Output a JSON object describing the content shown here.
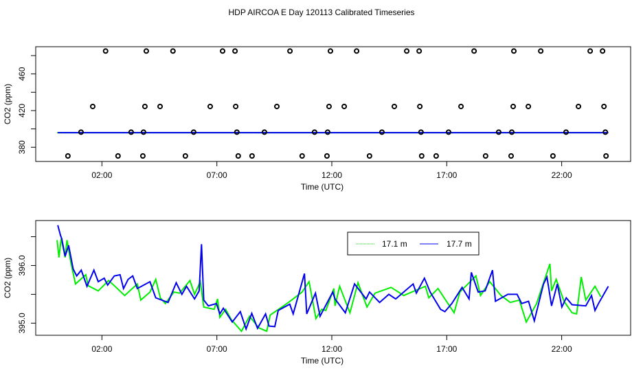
{
  "chart_data": [
    {
      "type": "scatter",
      "title": "HDP AIRCOA E  Day 120113  Calibrated Timeseries",
      "xlabel": "Time (UTC)",
      "ylabel": "CO2 (ppm)",
      "xlim": [
        -0.88,
        25.0
      ],
      "ylim": [
        364.5,
        489.7
      ],
      "xticks": [
        {
          "v": 2,
          "label": "02:00"
        },
        {
          "v": 7,
          "label": "07:00"
        },
        {
          "v": 12,
          "label": "12:00"
        },
        {
          "v": 17,
          "label": "17:00"
        },
        {
          "v": 22,
          "label": "22:00"
        }
      ],
      "yticks": [
        {
          "v": 380,
          "label": "380"
        },
        {
          "v": 400,
          "label": ""
        },
        {
          "v": 420,
          "label": "420"
        },
        {
          "v": 440,
          "label": ""
        },
        {
          "v": 460,
          "label": "460"
        },
        {
          "v": 480,
          "label": ""
        }
      ],
      "points": [
        {
          "level": 485,
          "x": [
            2.16,
            3.93,
            5.09,
            7.25,
            7.79,
            10.18,
            11.94,
            13.08,
            15.26,
            15.8,
            18.19,
            19.92,
            21.09,
            23.24,
            23.78
          ]
        },
        {
          "level": 424.5,
          "x": [
            1.6,
            3.87,
            4.53,
            6.71,
            7.82,
            9.61,
            11.88,
            12.54,
            14.72,
            15.83,
            17.62,
            19.89,
            20.55,
            22.73,
            23.84
          ]
        },
        {
          "level": 396.5,
          "x": [
            1.09,
            3.27,
            3.81,
            5.99,
            7.87,
            9.07,
            11.25,
            11.82,
            14.18,
            15.88,
            17.08,
            19.26,
            19.83,
            22.19,
            23.9
          ]
        },
        {
          "level": 370.5,
          "x": [
            0.52,
            2.7,
            3.78,
            5.63,
            7.93,
            8.53,
            10.71,
            11.79,
            13.64,
            15.91,
            16.54,
            18.69,
            19.8,
            21.62,
            23.93
          ]
        }
      ],
      "line_level": 395.9
    },
    {
      "type": "line",
      "xlabel": "Time (UTC)",
      "ylabel": "CO2 (ppm)",
      "xlim": [
        -0.88,
        25.0
      ],
      "ylim": [
        394.79,
        396.78
      ],
      "xticks": [
        {
          "v": 2,
          "label": "02:00"
        },
        {
          "v": 7,
          "label": "07:00"
        },
        {
          "v": 12,
          "label": "12:00"
        },
        {
          "v": 17,
          "label": "17:00"
        },
        {
          "v": 22,
          "label": "22:00"
        }
      ],
      "yticks": [
        {
          "v": 395.0,
          "label": "395.0"
        },
        {
          "v": 395.5,
          "label": ""
        },
        {
          "v": 396.0,
          "label": "396.0"
        },
        {
          "v": 396.5,
          "label": ""
        }
      ],
      "legend": {
        "position": "top-center"
      },
      "series": [
        {
          "name": "17.1 m",
          "color": "#00ee00",
          "x": [
            0.05,
            0.13,
            0.23,
            0.4,
            0.48,
            0.65,
            0.85,
            1.3,
            1.4,
            1.84,
            2.29,
            2.54,
            2.99,
            3.54,
            3.69,
            4.09,
            4.34,
            4.54,
            4.76,
            5.13,
            5.38,
            5.83,
            6.03,
            6.28,
            6.43,
            6.88,
            7.03,
            7.13,
            7.38,
            7.63,
            8.07,
            8.42,
            8.82,
            9.17,
            9.32,
            9.87,
            10.22,
            10.71,
            11.01,
            11.31,
            11.56,
            11.74,
            12.09,
            12.14,
            12.34,
            12.79,
            13.14,
            13.53,
            13.88,
            14.58,
            15.13,
            16.07,
            16.22,
            16.62,
            17.32,
            17.57,
            18.27,
            18.47,
            18.87,
            19.36,
            19.76,
            20.16,
            20.46,
            20.91,
            21.49,
            21.56,
            21.76,
            22.1,
            22.45,
            22.65,
            22.85,
            23.05,
            23.45,
            23.7
          ],
          "y": [
            396.44,
            396.14,
            396.47,
            396.14,
            396.44,
            396.05,
            395.68,
            395.84,
            395.65,
            395.56,
            395.74,
            395.65,
            395.48,
            395.68,
            395.4,
            395.54,
            395.76,
            395.44,
            395.34,
            395.54,
            395.52,
            395.74,
            395.5,
            395.72,
            395.28,
            395.24,
            395.42,
            395.1,
            395.24,
            395.06,
            394.86,
            395.12,
            394.92,
            394.86,
            395.14,
            395.29,
            395.39,
            395.54,
            395.72,
            395.08,
            395.24,
            395.22,
            395.6,
            395.3,
            395.64,
            395.18,
            395.7,
            395.28,
            395.52,
            395.62,
            395.48,
            395.64,
            395.44,
            395.6,
            395.18,
            395.54,
            395.82,
            395.48,
            395.72,
            395.48,
            395.36,
            395.4,
            395.02,
            395.34,
            396.03,
            395.56,
            395.76,
            395.38,
            395.18,
            395.16,
            395.8,
            395.4,
            395.64,
            395.46
          ]
        },
        {
          "name": "17.7 m",
          "color": "#0000ee",
          "x": [
            0.08,
            0.2,
            0.25,
            0.4,
            0.55,
            0.75,
            0.9,
            1.1,
            1.35,
            1.65,
            1.84,
            2.1,
            2.25,
            2.54,
            2.79,
            2.94,
            3.14,
            3.34,
            3.54,
            4.09,
            4.34,
            4.88,
            5.23,
            5.48,
            5.68,
            6.03,
            6.23,
            6.33,
            6.43,
            6.63,
            6.98,
            7.13,
            7.28,
            7.67,
            8.02,
            8.27,
            8.52,
            8.77,
            9.12,
            9.27,
            9.52,
            9.67,
            10.17,
            10.32,
            10.81,
            10.91,
            11.29,
            11.49,
            12.04,
            12.14,
            12.59,
            12.99,
            13.49,
            13.64,
            14.08,
            14.48,
            14.78,
            15.54,
            15.68,
            16.03,
            16.28,
            16.73,
            16.92,
            17.22,
            17.67,
            17.97,
            18.07,
            18.37,
            18.67,
            18.99,
            19.12,
            19.66,
            20.06,
            20.26,
            20.56,
            20.81,
            21.21,
            21.36,
            21.56,
            21.81,
            22.01,
            22.2,
            22.45,
            23.05,
            23.3,
            23.45,
            23.6,
            24.03
          ],
          "y": [
            396.7,
            396.52,
            396.47,
            396.16,
            396.35,
            395.94,
            395.82,
            395.92,
            395.64,
            395.92,
            395.72,
            395.78,
            395.66,
            395.82,
            395.84,
            395.6,
            395.76,
            395.82,
            395.6,
            395.72,
            395.44,
            395.36,
            395.7,
            395.5,
            395.64,
            395.42,
            395.56,
            396.37,
            395.4,
            395.3,
            395.34,
            395.16,
            395.26,
            395.02,
            395.2,
            394.9,
            395.17,
            394.91,
            395.16,
            394.95,
            394.94,
            395.22,
            395.33,
            395.16,
            395.86,
            395.16,
            395.52,
            395.12,
            395.54,
            395.42,
            395.18,
            395.68,
            395.42,
            395.54,
            395.36,
            395.5,
            395.42,
            395.68,
            395.52,
            395.78,
            395.54,
            395.24,
            395.2,
            395.34,
            395.62,
            395.42,
            395.88,
            395.54,
            395.56,
            395.92,
            395.38,
            395.5,
            395.5,
            395.34,
            395.38,
            395.04,
            395.68,
            395.8,
            395.3,
            395.68,
            395.28,
            395.44,
            395.32,
            395.3,
            395.48,
            395.22,
            395.34,
            395.64
          ]
        }
      ]
    }
  ]
}
